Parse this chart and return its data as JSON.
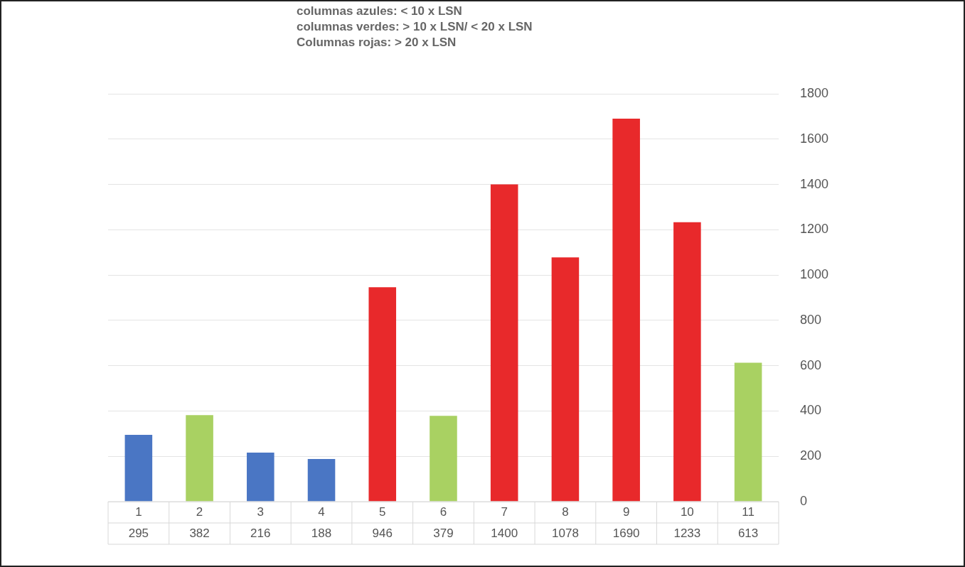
{
  "chart_data": {
    "type": "bar",
    "annotations": [
      "columnas azules: < 10 x LSN",
      "columnas verdes: > 10 x LSN/ < 20 x LSN",
      "Columnas rojas: > 20 x LSN"
    ],
    "categories": [
      "1",
      "2",
      "3",
      "4",
      "5",
      "6",
      "7",
      "8",
      "9",
      "10",
      "11"
    ],
    "values": [
      295,
      382,
      216,
      188,
      946,
      379,
      1400,
      1078,
      1690,
      1233,
      613
    ],
    "colors": [
      "#4a76c4",
      "#a9d162",
      "#4a76c4",
      "#4a76c4",
      "#e8292b",
      "#a9d162",
      "#e8292b",
      "#e8292b",
      "#e8292b",
      "#e8292b",
      "#a9d162"
    ],
    "ylim": [
      0,
      1800
    ],
    "yticks": [
      0,
      200,
      400,
      600,
      800,
      1000,
      1200,
      1400,
      1600,
      1800
    ],
    "grid": "y",
    "legend": false,
    "data_labels": true
  }
}
